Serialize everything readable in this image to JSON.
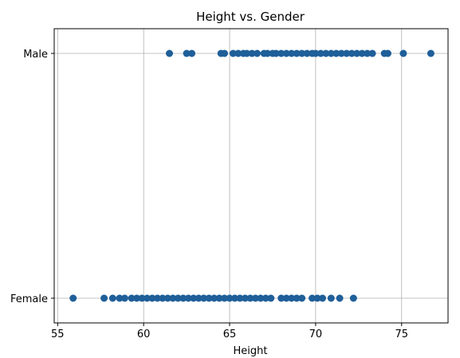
{
  "chart_data": {
    "type": "scatter",
    "title": "Height vs. Gender",
    "xlabel": "Height",
    "ylabel": "",
    "xlim": [
      54.8,
      77.7
    ],
    "xticks": [
      55,
      60,
      65,
      70,
      75
    ],
    "ycategories": [
      "Female",
      "Male"
    ],
    "grid": true,
    "marker_color": "#1f5f99",
    "series": [
      {
        "category": "Male",
        "x": [
          61.5,
          62.5,
          62.8,
          64.5,
          64.7,
          65.2,
          65.5,
          65.8,
          66.0,
          66.3,
          66.6,
          67.0,
          67.2,
          67.5,
          67.7,
          68.0,
          68.3,
          68.6,
          68.9,
          69.2,
          69.5,
          69.8,
          70.0,
          70.3,
          70.6,
          70.9,
          71.2,
          71.5,
          71.8,
          72.1,
          72.4,
          72.7,
          73.0,
          73.3,
          74.0,
          74.2,
          75.1,
          76.7
        ]
      },
      {
        "category": "Female",
        "x": [
          55.9,
          57.7,
          58.2,
          58.6,
          58.9,
          59.3,
          59.6,
          59.9,
          60.2,
          60.5,
          60.8,
          61.1,
          61.4,
          61.7,
          62.0,
          62.3,
          62.6,
          62.9,
          63.2,
          63.5,
          63.8,
          64.1,
          64.4,
          64.7,
          65.0,
          65.3,
          65.6,
          65.9,
          66.2,
          66.5,
          66.8,
          67.1,
          67.4,
          68.0,
          68.3,
          68.6,
          68.9,
          69.2,
          69.8,
          70.1,
          70.4,
          70.9,
          71.4,
          72.2
        ]
      }
    ]
  }
}
